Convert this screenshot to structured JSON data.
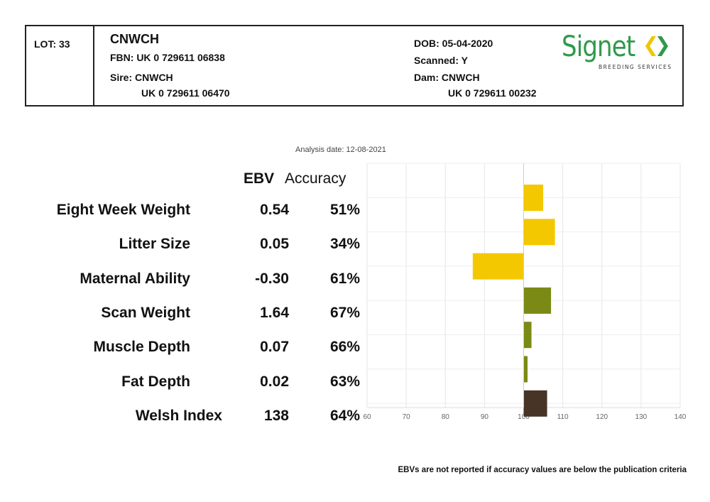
{
  "header": {
    "lot": "LOT: 33",
    "name": "CNWCH",
    "fbn": "FBN: UK 0 729611 06838",
    "sire": "Sire: CNWCH",
    "sire_id": "UK 0 729611 06470",
    "dob": "DOB: 05-04-2020",
    "scanned": "Scanned: Y",
    "dam": "Dam: CNWCH",
    "dam_id": "UK 0 729611 00232"
  },
  "logo": {
    "word": "Signet",
    "subtitle": "BREEDING SERVICES",
    "brand_color": "#2f9a4a",
    "mark_color": "#f2c500"
  },
  "analysis_date": "Analysis date: 12-08-2021",
  "columns": {
    "ebv": "EBV",
    "accuracy": "Accuracy"
  },
  "footnote": "EBVs are not reported if accuracy values are below the publication criteria",
  "chart_data": {
    "type": "bar",
    "orientation": "horizontal",
    "baseline": 100,
    "xlim": [
      60,
      140
    ],
    "xticks": [
      "60",
      "70",
      "80",
      "90",
      "100",
      "110",
      "120",
      "130",
      "140"
    ],
    "grid": true,
    "rows": [
      {
        "label": "Eight Week Weight",
        "ebv": "0.54",
        "accuracy": "51%",
        "value": 105,
        "color": "#f4c800"
      },
      {
        "label": "Litter Size",
        "ebv": "0.05",
        "accuracy": "34%",
        "value": 108,
        "color": "#f4c800"
      },
      {
        "label": "Maternal Ability",
        "ebv": "-0.30",
        "accuracy": "61%",
        "value": 87,
        "color": "#f4c800"
      },
      {
        "label": "Scan Weight",
        "ebv": "1.64",
        "accuracy": "67%",
        "value": 107,
        "color": "#7a8a14"
      },
      {
        "label": "Muscle Depth",
        "ebv": "0.07",
        "accuracy": "66%",
        "value": 102,
        "color": "#7a8a14"
      },
      {
        "label": "Fat Depth",
        "ebv": "0.02",
        "accuracy": "63%",
        "value": 101,
        "color": "#7a8a14"
      },
      {
        "label": "Welsh Index",
        "ebv": "138",
        "accuracy": "64%",
        "value": 106,
        "color": "#473426"
      }
    ]
  }
}
